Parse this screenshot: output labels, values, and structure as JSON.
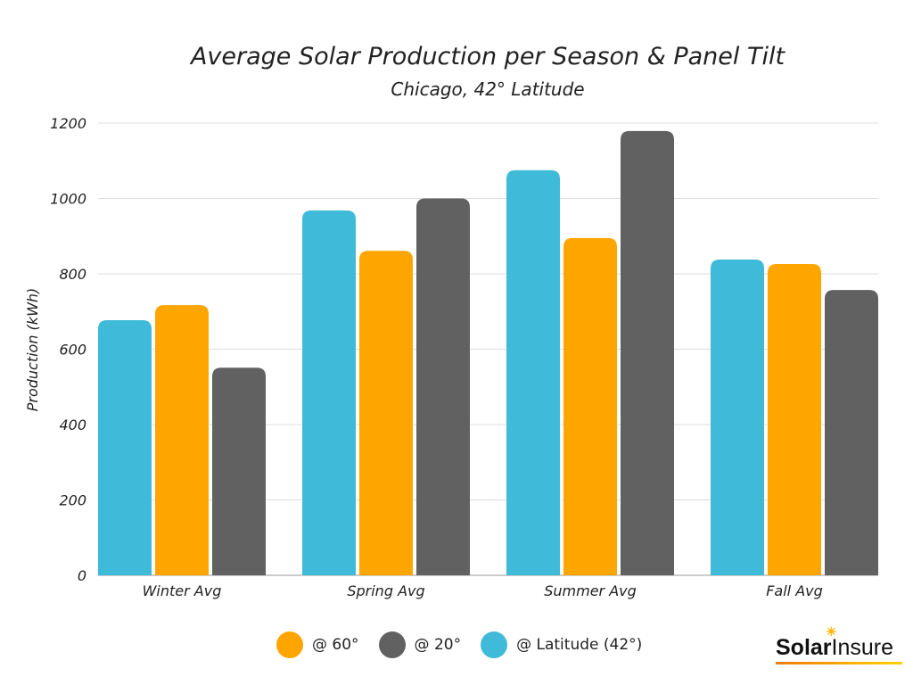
{
  "chart_data": {
    "type": "bar",
    "title": "Average Solar Production per Season & Panel Tilt",
    "subtitle": "Chicago, 42° Latitude",
    "xlabel": "",
    "ylabel": "Production (kWh)",
    "ylim": [
      0,
      1200
    ],
    "yticks": [
      "0",
      "200",
      "400",
      "600",
      "800",
      "1000",
      "1200"
    ],
    "grid": true,
    "legend_position": "bottom",
    "categories": [
      "Winter Avg",
      "Spring Avg",
      "Summer Avg",
      "Fall Avg"
    ],
    "series": [
      {
        "name": "@ Latitude (42°)",
        "color": "#3FBAD9",
        "values": [
          677,
          968,
          1075,
          838
        ]
      },
      {
        "name": "@ 60°",
        "color": "#FFA500",
        "values": [
          717,
          861,
          895,
          826
        ]
      },
      {
        "name": "@ 20°",
        "color": "#616161",
        "values": [
          551,
          1000,
          1179,
          757
        ]
      }
    ],
    "legend_order": [
      1,
      2,
      0
    ]
  },
  "logo": {
    "text_bold": "Solar",
    "text_rest": "Insure"
  }
}
